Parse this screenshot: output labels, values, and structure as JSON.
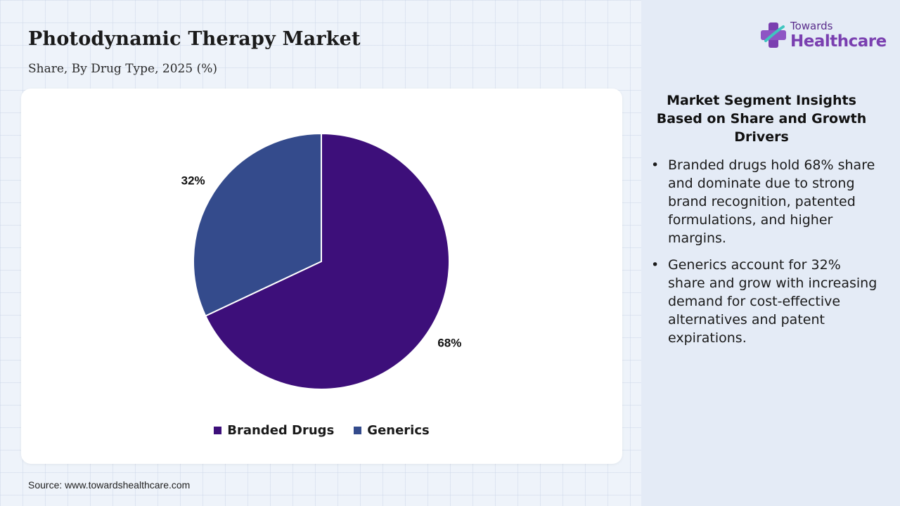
{
  "header": {
    "title": "Photodynamic Therapy Market",
    "subtitle": "Share, By Drug Type, 2025 (%)"
  },
  "logo": {
    "line1": "Towards",
    "line2": "Healthcare"
  },
  "chart_data": {
    "type": "pie",
    "categories": [
      "Branded Drugs",
      "Generics"
    ],
    "values": [
      68,
      32
    ],
    "unit": "%",
    "data_labels": [
      "68%",
      "32%"
    ],
    "colors": [
      "#3d0f7a",
      "#344b8c"
    ],
    "legend_position": "bottom-center",
    "start_angle": "12 o'clock, clockwise"
  },
  "legend": {
    "items": [
      {
        "label": "Branded Drugs",
        "color": "#3d0f7a"
      },
      {
        "label": "Generics",
        "color": "#344b8c"
      }
    ]
  },
  "insights": {
    "title": "Market Segment Insights Based on Share and Growth Drivers",
    "bullets": [
      "Branded drugs hold 68% share and dominate due to strong brand recognition, patented formulations, and higher margins.",
      "Generics account for 32% share and grow with increasing demand for cost-effective alternatives and patent expirations."
    ]
  },
  "footer": {
    "source": "Source: www.towardshealthcare.com"
  }
}
